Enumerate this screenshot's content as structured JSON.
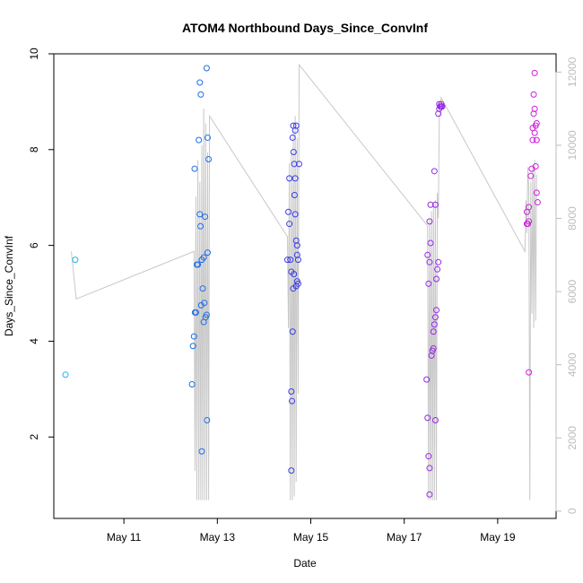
{
  "chart_data": {
    "type": "scatter",
    "title": "ATOM4 Northbound Days_Since_ConvInf",
    "xlabel": "Date",
    "ylabel": "Days_Since_ConvInf",
    "xlim": [
      "2024-05-09T12:00",
      "2024-05-20T06:00"
    ],
    "ylim": [
      0.3,
      10
    ],
    "x_ticks": [
      {
        "date": "2024-05-11T00:00",
        "label": "May 11"
      },
      {
        "date": "2024-05-13T00:00",
        "label": "May 13"
      },
      {
        "date": "2024-05-15T00:00",
        "label": "May 15"
      },
      {
        "date": "2024-05-17T00:00",
        "label": "May 17"
      },
      {
        "date": "2024-05-19T00:00",
        "label": "May 19"
      }
    ],
    "y_ticks": [
      2,
      4,
      6,
      8,
      10
    ],
    "y2_ticks": [
      0,
      2000,
      4000,
      6000,
      8000,
      10000,
      12000
    ],
    "y2lim": [
      -200,
      12500
    ],
    "colors": {
      "axis": "#000000",
      "secondary_axis": "#bdbdbd",
      "line": "#c8c8c8",
      "series": [
        "#1eb4e6",
        "#1e6ee6",
        "#3c3ce6",
        "#9628e6",
        "#d21edc"
      ]
    },
    "series": [
      {
        "points": [
          {
            "x": "2024-05-09T18:00",
            "y": 3.3
          },
          {
            "x": "2024-05-09T23:00",
            "y": 5.7
          }
        ]
      },
      {
        "points": [
          {
            "x": "2024-05-12T11:00",
            "y": 3.1
          },
          {
            "x": "2024-05-12T11:30",
            "y": 3.9
          },
          {
            "x": "2024-05-12T12:00",
            "y": 4.1
          },
          {
            "x": "2024-05-12T12:30",
            "y": 4.6
          },
          {
            "x": "2024-05-12T13:00",
            "y": 4.6
          },
          {
            "x": "2024-05-12T13:30",
            "y": 5.6
          },
          {
            "x": "2024-05-12T14:00",
            "y": 5.6
          },
          {
            "x": "2024-05-12T12:20",
            "y": 7.6
          },
          {
            "x": "2024-05-12T14:30",
            "y": 8.2
          },
          {
            "x": "2024-05-12T15:00",
            "y": 9.4
          },
          {
            "x": "2024-05-12T15:30",
            "y": 9.15
          },
          {
            "x": "2024-05-12T15:00",
            "y": 6.65
          },
          {
            "x": "2024-05-12T15:20",
            "y": 6.4
          },
          {
            "x": "2024-05-12T15:40",
            "y": 4.75
          },
          {
            "x": "2024-05-12T16:00",
            "y": 5.7
          },
          {
            "x": "2024-05-12T16:30",
            "y": 5.1
          },
          {
            "x": "2024-05-12T17:00",
            "y": 5.75
          },
          {
            "x": "2024-05-12T17:00",
            "y": 4.4
          },
          {
            "x": "2024-05-12T17:20",
            "y": 4.8
          },
          {
            "x": "2024-05-12T17:40",
            "y": 6.6
          },
          {
            "x": "2024-05-12T18:00",
            "y": 4.5
          },
          {
            "x": "2024-05-12T18:30",
            "y": 4.55
          },
          {
            "x": "2024-05-12T19:00",
            "y": 5.85
          },
          {
            "x": "2024-05-12T19:00",
            "y": 8.25
          },
          {
            "x": "2024-05-12T19:30",
            "y": 7.8
          },
          {
            "x": "2024-05-12T18:30",
            "y": 9.7
          },
          {
            "x": "2024-05-12T16:00",
            "y": 1.7
          },
          {
            "x": "2024-05-12T18:40",
            "y": 2.35
          }
        ]
      },
      {
        "points": [
          {
            "x": "2024-05-14T12:00",
            "y": 5.7
          },
          {
            "x": "2024-05-14T12:30",
            "y": 6.7
          },
          {
            "x": "2024-05-14T13:00",
            "y": 7.4
          },
          {
            "x": "2024-05-14T13:00",
            "y": 6.45
          },
          {
            "x": "2024-05-14T13:30",
            "y": 5.7
          },
          {
            "x": "2024-05-14T14:00",
            "y": 5.45
          },
          {
            "x": "2024-05-14T14:00",
            "y": 2.95
          },
          {
            "x": "2024-05-14T14:20",
            "y": 2.75
          },
          {
            "x": "2024-05-14T14:00",
            "y": 1.3
          },
          {
            "x": "2024-05-14T14:40",
            "y": 4.2
          },
          {
            "x": "2024-05-14T15:00",
            "y": 5.1
          },
          {
            "x": "2024-05-14T15:20",
            "y": 5.4
          },
          {
            "x": "2024-05-14T15:00",
            "y": 8.5
          },
          {
            "x": "2024-05-14T14:40",
            "y": 8.25
          },
          {
            "x": "2024-05-14T15:10",
            "y": 7.95
          },
          {
            "x": "2024-05-14T15:30",
            "y": 7.7
          },
          {
            "x": "2024-05-14T16:00",
            "y": 7.4
          },
          {
            "x": "2024-05-14T15:40",
            "y": 7.05
          },
          {
            "x": "2024-05-14T16:00",
            "y": 6.65
          },
          {
            "x": "2024-05-14T16:00",
            "y": 8.4
          },
          {
            "x": "2024-05-14T16:30",
            "y": 8.5
          },
          {
            "x": "2024-05-14T16:30",
            "y": 6.1
          },
          {
            "x": "2024-05-14T17:00",
            "y": 6.0
          },
          {
            "x": "2024-05-14T17:00",
            "y": 5.8
          },
          {
            "x": "2024-05-14T17:30",
            "y": 5.7
          },
          {
            "x": "2024-05-14T17:00",
            "y": 5.25
          },
          {
            "x": "2024-05-14T17:30",
            "y": 5.2
          },
          {
            "x": "2024-05-14T16:30",
            "y": 5.15
          },
          {
            "x": "2024-05-14T18:00",
            "y": 7.7
          }
        ]
      },
      {
        "points": [
          {
            "x": "2024-05-17T11:30",
            "y": 3.2
          },
          {
            "x": "2024-05-17T12:00",
            "y": 2.4
          },
          {
            "x": "2024-05-17T12:30",
            "y": 1.6
          },
          {
            "x": "2024-05-17T13:00",
            "y": 0.8
          },
          {
            "x": "2024-05-17T13:00",
            "y": 1.35
          },
          {
            "x": "2024-05-17T12:30",
            "y": 5.2
          },
          {
            "x": "2024-05-17T12:00",
            "y": 5.8
          },
          {
            "x": "2024-05-17T13:00",
            "y": 5.65
          },
          {
            "x": "2024-05-17T13:30",
            "y": 6.05
          },
          {
            "x": "2024-05-17T13:00",
            "y": 6.5
          },
          {
            "x": "2024-05-17T13:30",
            "y": 6.85
          },
          {
            "x": "2024-05-17T14:00",
            "y": 3.7
          },
          {
            "x": "2024-05-17T14:30",
            "y": 3.8
          },
          {
            "x": "2024-05-17T15:00",
            "y": 3.85
          },
          {
            "x": "2024-05-17T15:00",
            "y": 4.2
          },
          {
            "x": "2024-05-17T15:30",
            "y": 4.35
          },
          {
            "x": "2024-05-17T16:00",
            "y": 4.5
          },
          {
            "x": "2024-05-17T16:30",
            "y": 4.65
          },
          {
            "x": "2024-05-17T16:00",
            "y": 2.35
          },
          {
            "x": "2024-05-17T16:30",
            "y": 5.3
          },
          {
            "x": "2024-05-17T17:00",
            "y": 5.5
          },
          {
            "x": "2024-05-17T17:30",
            "y": 5.65
          },
          {
            "x": "2024-05-17T15:30",
            "y": 7.55
          },
          {
            "x": "2024-05-17T16:00",
            "y": 6.85
          },
          {
            "x": "2024-05-17T17:30",
            "y": 8.75
          },
          {
            "x": "2024-05-17T18:00",
            "y": 8.85
          },
          {
            "x": "2024-05-17T18:30",
            "y": 8.9
          },
          {
            "x": "2024-05-17T19:00",
            "y": 8.9
          },
          {
            "x": "2024-05-17T18:00",
            "y": 8.95
          },
          {
            "x": "2024-05-17T19:00",
            "y": 8.95
          },
          {
            "x": "2024-05-17T19:30",
            "y": 8.9
          }
        ]
      },
      {
        "points": [
          {
            "x": "2024-05-19T15:00",
            "y": 6.45
          },
          {
            "x": "2024-05-19T15:30",
            "y": 6.45
          },
          {
            "x": "2024-05-19T16:00",
            "y": 6.5
          },
          {
            "x": "2024-05-19T15:00",
            "y": 6.7
          },
          {
            "x": "2024-05-19T16:00",
            "y": 6.8
          },
          {
            "x": "2024-05-19T16:00",
            "y": 3.35
          },
          {
            "x": "2024-05-19T17:00",
            "y": 7.45
          },
          {
            "x": "2024-05-19T17:30",
            "y": 7.6
          },
          {
            "x": "2024-05-19T18:00",
            "y": 8.2
          },
          {
            "x": "2024-05-19T18:00",
            "y": 8.45
          },
          {
            "x": "2024-05-19T18:30",
            "y": 8.75
          },
          {
            "x": "2024-05-19T19:00",
            "y": 8.85
          },
          {
            "x": "2024-05-19T19:30",
            "y": 8.5
          },
          {
            "x": "2024-05-19T19:00",
            "y": 8.35
          },
          {
            "x": "2024-05-19T20:00",
            "y": 8.55
          },
          {
            "x": "2024-05-19T20:00",
            "y": 8.2
          },
          {
            "x": "2024-05-19T19:00",
            "y": 9.6
          },
          {
            "x": "2024-05-19T18:30",
            "y": 9.15
          },
          {
            "x": "2024-05-19T19:30",
            "y": 7.65
          },
          {
            "x": "2024-05-19T20:00",
            "y": 7.1
          },
          {
            "x": "2024-05-19T20:30",
            "y": 6.9
          }
        ]
      }
    ],
    "line_series": {
      "axis": "secondary",
      "points": [
        {
          "x": "2024-05-09T21:00",
          "y": 7100
        },
        {
          "x": "2024-05-09T23:30",
          "y": 5800
        },
        {
          "x": "2024-05-12T12:00",
          "y": 7100
        },
        {
          "x": "2024-05-12T12:30",
          "y": 1100
        },
        {
          "x": "2024-05-12T13:00",
          "y": 8600
        },
        {
          "x": "2024-05-12T13:30",
          "y": 300
        },
        {
          "x": "2024-05-12T14:00",
          "y": 9600
        },
        {
          "x": "2024-05-12T14:30",
          "y": 300
        },
        {
          "x": "2024-05-12T15:00",
          "y": 9000
        },
        {
          "x": "2024-05-12T15:30",
          "y": 300
        },
        {
          "x": "2024-05-12T16:00",
          "y": 10000
        },
        {
          "x": "2024-05-12T16:30",
          "y": 300
        },
        {
          "x": "2024-05-12T17:00",
          "y": 11000
        },
        {
          "x": "2024-05-12T17:30",
          "y": 300
        },
        {
          "x": "2024-05-12T18:00",
          "y": 10600
        },
        {
          "x": "2024-05-12T18:30",
          "y": 300
        },
        {
          "x": "2024-05-12T19:00",
          "y": 9800
        },
        {
          "x": "2024-05-12T19:30",
          "y": 300
        },
        {
          "x": "2024-05-12T20:00",
          "y": 10800
        },
        {
          "x": "2024-05-14T12:00",
          "y": 7500
        },
        {
          "x": "2024-05-14T12:30",
          "y": 5000
        },
        {
          "x": "2024-05-14T13:00",
          "y": 9500
        },
        {
          "x": "2024-05-14T13:30",
          "y": 300
        },
        {
          "x": "2024-05-14T14:00",
          "y": 9800
        },
        {
          "x": "2024-05-14T14:30",
          "y": 300
        },
        {
          "x": "2024-05-14T15:00",
          "y": 10400
        },
        {
          "x": "2024-05-14T15:30",
          "y": 400
        },
        {
          "x": "2024-05-14T16:00",
          "y": 10800
        },
        {
          "x": "2024-05-14T16:30",
          "y": 800
        },
        {
          "x": "2024-05-14T17:00",
          "y": 10200
        },
        {
          "x": "2024-05-14T17:30",
          "y": 3200
        },
        {
          "x": "2024-05-14T18:00",
          "y": 12200
        },
        {
          "x": "2024-05-17T12:00",
          "y": 7800
        },
        {
          "x": "2024-05-17T12:30",
          "y": 300
        },
        {
          "x": "2024-05-17T13:00",
          "y": 8000
        },
        {
          "x": "2024-05-17T13:30",
          "y": 300
        },
        {
          "x": "2024-05-17T14:00",
          "y": 8200
        },
        {
          "x": "2024-05-17T14:30",
          "y": 300
        },
        {
          "x": "2024-05-17T15:00",
          "y": 8400
        },
        {
          "x": "2024-05-17T15:30",
          "y": 300
        },
        {
          "x": "2024-05-17T16:00",
          "y": 8500
        },
        {
          "x": "2024-05-17T16:30",
          "y": 300
        },
        {
          "x": "2024-05-17T17:00",
          "y": 8700
        },
        {
          "x": "2024-05-17T17:30",
          "y": 8000
        },
        {
          "x": "2024-05-17T18:00",
          "y": 10800
        },
        {
          "x": "2024-05-17T19:00",
          "y": 11300
        },
        {
          "x": "2024-05-19T14:00",
          "y": 7100
        },
        {
          "x": "2024-05-19T14:30",
          "y": 8500
        },
        {
          "x": "2024-05-19T15:00",
          "y": 7600
        },
        {
          "x": "2024-05-19T15:30",
          "y": 9400
        },
        {
          "x": "2024-05-19T16:00",
          "y": 8800
        },
        {
          "x": "2024-05-19T16:30",
          "y": 300
        },
        {
          "x": "2024-05-19T17:00",
          "y": 9000
        },
        {
          "x": "2024-05-19T17:30",
          "y": 5400
        },
        {
          "x": "2024-05-19T18:00",
          "y": 9400
        },
        {
          "x": "2024-05-19T18:30",
          "y": 5000
        },
        {
          "x": "2024-05-19T19:00",
          "y": 9600
        },
        {
          "x": "2024-05-19T19:30",
          "y": 5200
        },
        {
          "x": "2024-05-19T20:00",
          "y": 9200
        }
      ]
    },
    "grid": false,
    "legend": "none"
  }
}
